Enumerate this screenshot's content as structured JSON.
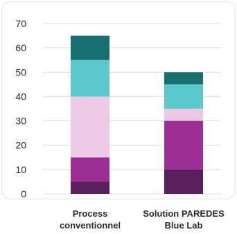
{
  "chart_data": {
    "type": "bar",
    "stacked": true,
    "categories": [
      [
        "Process",
        "conventionnel"
      ],
      [
        "Solution PAREDES",
        "Blue Lab"
      ]
    ],
    "series": [
      {
        "values": [
          5,
          10
        ],
        "color": "#5a1f5e"
      },
      {
        "values": [
          10,
          20
        ],
        "color": "#9b2f93"
      },
      {
        "values": [
          25,
          5
        ],
        "color": "#ecc9e4"
      },
      {
        "values": [
          15,
          10
        ],
        "color": "#5cc9cf"
      },
      {
        "values": [
          10,
          5
        ],
        "color": "#17706f"
      }
    ],
    "yticks": [
      0,
      10,
      20,
      30,
      40,
      50,
      60,
      70
    ],
    "ylim": [
      0,
      70
    ],
    "grid": true,
    "gridColor": "#d9d9d9",
    "title": "",
    "xlabel": "",
    "ylabel": ""
  }
}
